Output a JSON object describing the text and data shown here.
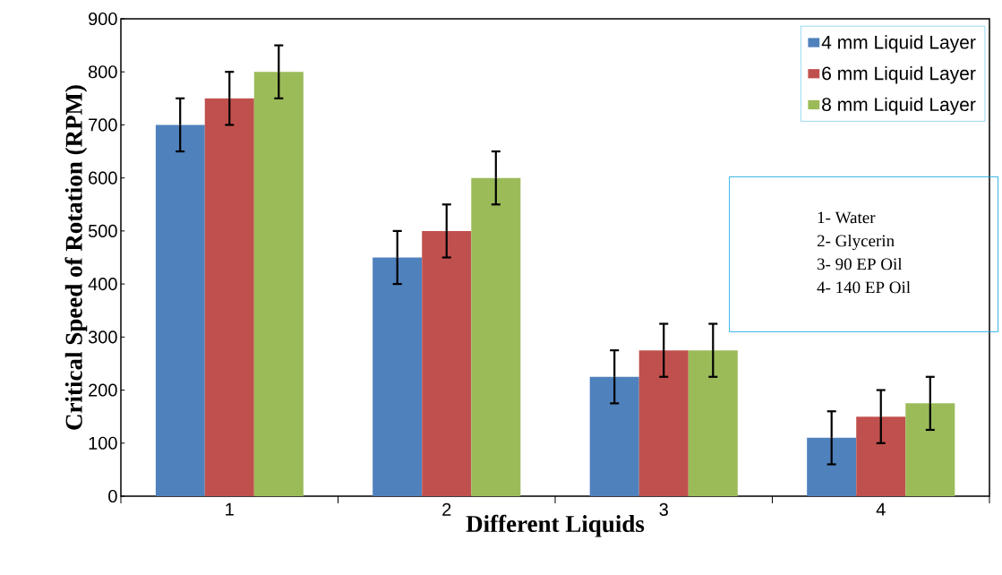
{
  "chart_data": {
    "type": "bar",
    "xlabel": "Different Liquids",
    "ylabel": "Critical Speed of Rotation (RPM)",
    "categories": [
      "1",
      "2",
      "3",
      "4"
    ],
    "series": [
      {
        "name": "4 mm Liquid Layer",
        "color": "#4f81bd",
        "values": [
          700,
          450,
          225,
          110
        ],
        "errors": [
          50,
          50,
          50,
          50
        ]
      },
      {
        "name": "6 mm Liquid Layer",
        "color": "#c0504d",
        "values": [
          750,
          500,
          275,
          150
        ],
        "errors": [
          50,
          50,
          50,
          50
        ]
      },
      {
        "name": "8 mm Liquid Layer",
        "color": "#9bbb59",
        "values": [
          800,
          600,
          275,
          175
        ],
        "errors": [
          50,
          50,
          50,
          50
        ]
      }
    ],
    "ylim": [
      0,
      900
    ],
    "yticks": [
      0,
      100,
      200,
      300,
      400,
      500,
      600,
      700,
      800,
      900
    ],
    "legend": "top right",
    "grid": false,
    "annotations": [
      "1-    Water",
      "2-    Glycerin",
      "3-    90 EP Oil",
      "4-    140 EP Oil"
    ]
  }
}
